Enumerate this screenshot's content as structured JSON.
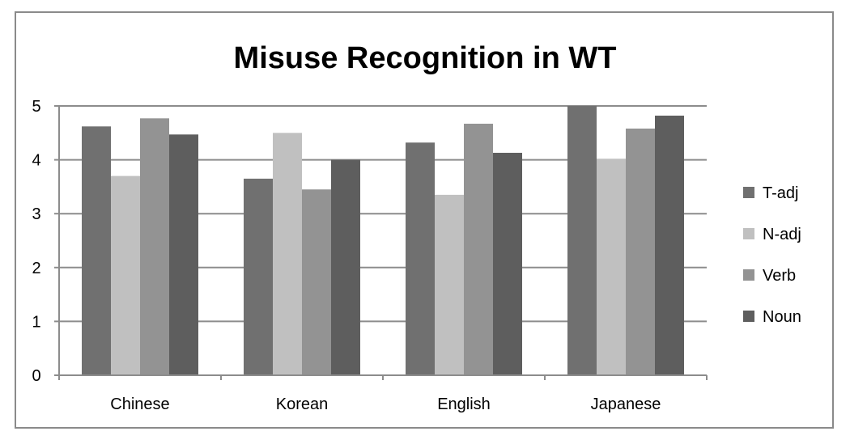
{
  "chart_data": {
    "type": "bar",
    "title": "Misuse Recognition in WT",
    "xlabel": "",
    "ylabel": "",
    "ylim": [
      0,
      5
    ],
    "yticks": [
      "0",
      "1",
      "2",
      "3",
      "4",
      "5"
    ],
    "grid": true,
    "legend_position": "right",
    "categories": [
      "Chinese",
      "Korean",
      "English",
      "Japanese"
    ],
    "series": [
      {
        "name": "T-adj",
        "color": "#707070",
        "values": [
          4.62,
          3.65,
          4.32,
          5.0
        ]
      },
      {
        "name": "N-adj",
        "color": "#c0c0c0",
        "values": [
          3.7,
          4.5,
          3.35,
          4.02
        ]
      },
      {
        "name": "Verb",
        "color": "#939393",
        "values": [
          4.77,
          3.45,
          4.67,
          4.58
        ]
      },
      {
        "name": "Noun",
        "color": "#5e5e5e",
        "values": [
          4.47,
          4.0,
          4.13,
          4.82
        ]
      }
    ]
  }
}
